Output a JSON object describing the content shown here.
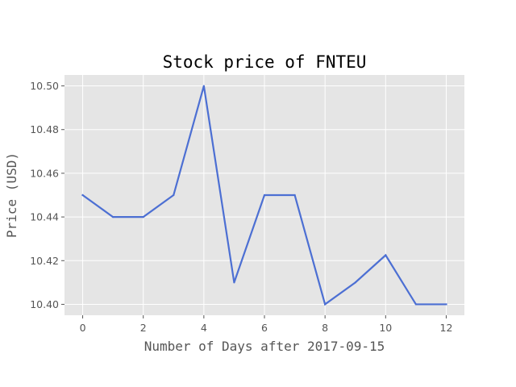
{
  "chart_data": {
    "type": "line",
    "title": "Stock price of FNTEU",
    "xlabel": "Number of Days after 2017-09-15",
    "ylabel": "Price (USD)",
    "x": [
      0,
      1,
      2,
      3,
      4,
      5,
      6,
      7,
      8,
      9,
      10,
      11,
      12
    ],
    "series": [
      {
        "values": [
          10.45,
          10.44,
          10.44,
          10.45,
          10.5,
          10.41,
          10.45,
          10.45,
          10.4,
          10.41,
          10.4225,
          10.4,
          10.4
        ]
      }
    ],
    "xlim": [
      -0.6,
      12.6
    ],
    "ylim": [
      10.395,
      10.505
    ],
    "xticks": [
      "0",
      "2",
      "4",
      "6",
      "8",
      "10",
      "12"
    ],
    "yticks": [
      "10.40",
      "10.42",
      "10.44",
      "10.46",
      "10.48",
      "10.50"
    ],
    "grid": true,
    "colors": {
      "line": "#4c6fd3",
      "plot_background": "#e5e5e5",
      "grid": "#ffffff",
      "tick_mark": "#555555"
    }
  }
}
